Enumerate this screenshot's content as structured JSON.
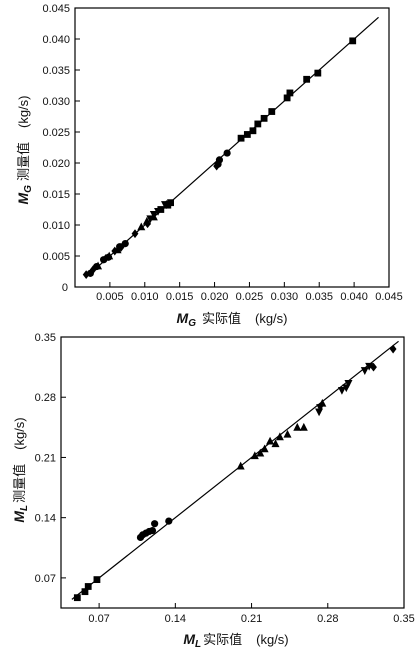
{
  "chart_data": [
    {
      "type": "scatter",
      "xlabel": {
        "symbol": "M",
        "sub": "G",
        "text": "实际值",
        "unit": "(kg/s)"
      },
      "ylabel": {
        "symbol": "M",
        "sub": "G",
        "text": "测量值",
        "unit": "(kg/s)"
      },
      "xlim": [
        0,
        0.045
      ],
      "ylim": [
        0,
        0.045
      ],
      "xticks": [
        "0.005",
        "0.010",
        "0.015",
        "0.020",
        "0.025",
        "0.030",
        "0.035",
        "0.040",
        "0.045"
      ],
      "yticks": [
        "0.005",
        "0.010",
        "0.015",
        "0.020",
        "0.025",
        "0.030",
        "0.035",
        "0.040",
        "0.045"
      ],
      "y_origin_label": "0",
      "reference_line": [
        [
          0.0015,
          0.0015
        ],
        [
          0.0435,
          0.0435
        ]
      ],
      "series": [
        {
          "marker": "square",
          "points": [
            [
              0.0123,
              0.0125
            ],
            [
              0.0133,
              0.0132
            ],
            [
              0.0137,
              0.0136
            ],
            [
              0.0238,
              0.024
            ],
            [
              0.0247,
              0.0246
            ],
            [
              0.0255,
              0.0252
            ],
            [
              0.0262,
              0.0263
            ],
            [
              0.0271,
              0.0272
            ],
            [
              0.0282,
              0.0283
            ],
            [
              0.0304,
              0.0305
            ],
            [
              0.0308,
              0.0313
            ],
            [
              0.0332,
              0.0335
            ],
            [
              0.0348,
              0.0345
            ],
            [
              0.0398,
              0.0397
            ]
          ]
        },
        {
          "marker": "circle",
          "points": [
            [
              0.0022,
              0.0022
            ],
            [
              0.0031,
              0.0033
            ],
            [
              0.0041,
              0.0044
            ],
            [
              0.0048,
              0.0048
            ],
            [
              0.0064,
              0.0065
            ],
            [
              0.0072,
              0.007
            ],
            [
              0.0205,
              0.0198
            ],
            [
              0.0207,
              0.0205
            ],
            [
              0.0218,
              0.0216
            ]
          ]
        },
        {
          "marker": "triangle-up",
          "points": [
            [
              0.0033,
              0.0034
            ],
            [
              0.0049,
              0.005
            ],
            [
              0.0061,
              0.006
            ],
            [
              0.0095,
              0.0097
            ],
            [
              0.0103,
              0.0106
            ],
            [
              0.0113,
              0.0113
            ]
          ]
        },
        {
          "marker": "triangle-down",
          "points": [
            [
              0.0108,
              0.011
            ],
            [
              0.0113,
              0.0117
            ],
            [
              0.0119,
              0.0122
            ],
            [
              0.0129,
              0.0133
            ]
          ]
        },
        {
          "marker": "diamond",
          "points": [
            [
              0.0016,
              0.002
            ],
            [
              0.0026,
              0.0028
            ],
            [
              0.0044,
              0.0046
            ],
            [
              0.0057,
              0.0058
            ],
            [
              0.0066,
              0.0064
            ],
            [
              0.0086,
              0.0086
            ],
            [
              0.0104,
              0.0102
            ],
            [
              0.0131,
              0.0133
            ],
            [
              0.0203,
              0.0195
            ]
          ]
        }
      ]
    },
    {
      "type": "scatter",
      "xlabel": {
        "symbol": "M",
        "sub": "L",
        "text": "实际值",
        "unit": "(kg/s)"
      },
      "ylabel": {
        "symbol": "M",
        "sub": "L",
        "text": "测量值",
        "unit": "(kg/s)"
      },
      "xlim": [
        0.035,
        0.35
      ],
      "ylim": [
        0.035,
        0.35
      ],
      "xticks": [
        "0.07",
        "0.14",
        "0.21",
        "0.28",
        "0.35"
      ],
      "yticks": [
        "0.07",
        "0.14",
        "0.21",
        "0.28",
        "0.35"
      ],
      "reference_line": [
        [
          0.045,
          0.045
        ],
        [
          0.345,
          0.345
        ]
      ],
      "series": [
        {
          "marker": "square",
          "points": [
            [
              0.05,
              0.047
            ],
            [
              0.057,
              0.054
            ],
            [
              0.06,
              0.06
            ],
            [
              0.068,
              0.068
            ]
          ]
        },
        {
          "marker": "circle",
          "points": [
            [
              0.108,
              0.117
            ],
            [
              0.11,
              0.12
            ],
            [
              0.113,
              0.122
            ],
            [
              0.116,
              0.124
            ],
            [
              0.119,
              0.125
            ],
            [
              0.121,
              0.133
            ],
            [
              0.134,
              0.136
            ]
          ]
        },
        {
          "marker": "triangle-up",
          "points": [
            [
              0.2,
              0.2
            ],
            [
              0.213,
              0.212
            ],
            [
              0.218,
              0.215
            ],
            [
              0.222,
              0.22
            ],
            [
              0.227,
              0.229
            ],
            [
              0.232,
              0.226
            ],
            [
              0.236,
              0.234
            ],
            [
              0.243,
              0.237
            ],
            [
              0.252,
              0.245
            ],
            [
              0.258,
              0.245
            ],
            [
              0.275,
              0.273
            ]
          ]
        },
        {
          "marker": "triangle-down",
          "points": [
            [
              0.272,
              0.263
            ],
            [
              0.273,
              0.268
            ],
            [
              0.293,
              0.288
            ],
            [
              0.297,
              0.291
            ],
            [
              0.299,
              0.296
            ],
            [
              0.314,
              0.311
            ],
            [
              0.318,
              0.316
            ]
          ]
        },
        {
          "marker": "diamond",
          "points": [
            [
              0.322,
              0.315
            ],
            [
              0.34,
              0.336
            ]
          ]
        }
      ]
    }
  ]
}
